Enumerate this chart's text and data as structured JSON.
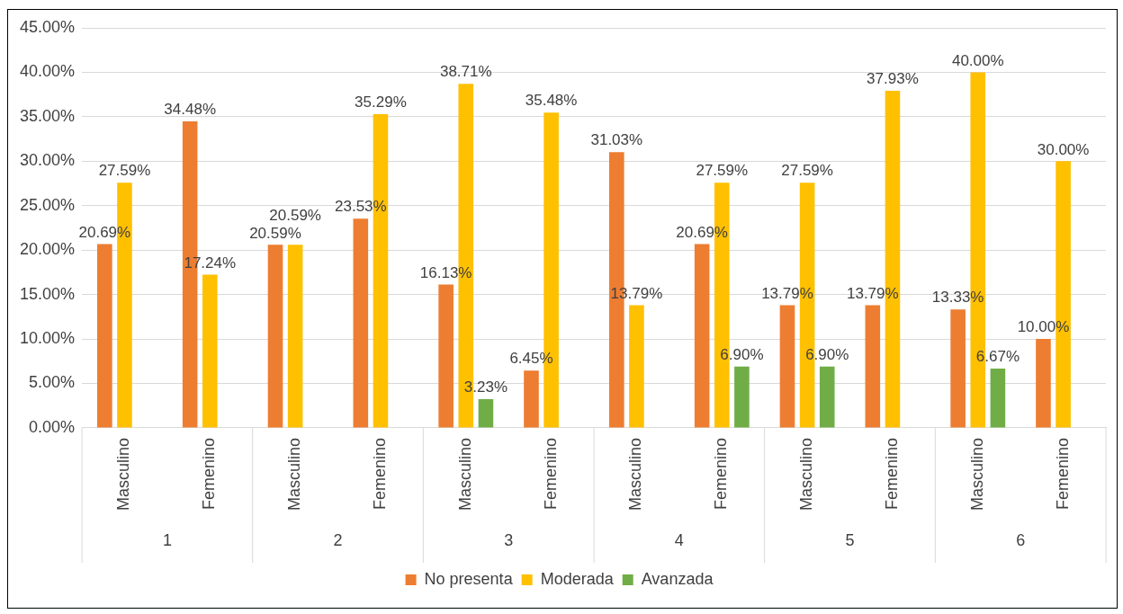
{
  "chart_data": {
    "type": "bar",
    "categories": [
      "Masculino",
      "Femenino",
      "Masculino",
      "Femenino",
      "Masculino",
      "Femenino",
      "Masculino",
      "Femenino",
      "Masculino",
      "Femenino",
      "Masculino",
      "Femenino"
    ],
    "annotations": [
      "1",
      "2",
      "3",
      "4",
      "5",
      "6"
    ],
    "series": [
      {
        "name": "No presenta",
        "color": "#ed7d31",
        "values": [
          20.69,
          34.48,
          20.59,
          23.53,
          16.13,
          6.45,
          31.03,
          20.69,
          13.79,
          13.79,
          13.33,
          10.0
        ],
        "value_labels": [
          "20.69%",
          "34.48%",
          "20.59%",
          "23.53%",
          "16.13%",
          "6.45%",
          "31.03%",
          "20.69%",
          "13.79%",
          "13.79%",
          "13.33%",
          "10.00%"
        ]
      },
      {
        "name": "Moderada",
        "color": "#ffc000",
        "values": [
          27.59,
          17.24,
          20.59,
          35.29,
          38.71,
          35.48,
          13.79,
          27.59,
          27.59,
          37.93,
          40.0,
          30.0
        ],
        "value_labels": [
          "27.59%",
          "17.24%",
          "20.59%",
          "35.29%",
          "38.71%",
          "35.48%",
          "13.79%",
          "27.59%",
          "27.59%",
          "37.93%",
          "40.00%",
          "30.00%"
        ]
      },
      {
        "name": "Avanzada",
        "color": "#70ad47",
        "values": [
          null,
          null,
          null,
          null,
          3.23,
          null,
          null,
          6.9,
          6.9,
          null,
          6.67,
          null
        ],
        "value_labels": [
          null,
          null,
          null,
          null,
          "3.23%",
          null,
          null,
          "6.90%",
          "6.90%",
          null,
          "6.67%",
          null
        ]
      }
    ],
    "ylim": [
      0,
      45
    ],
    "yticks": [
      {
        "value": 0,
        "label": "0.00%"
      },
      {
        "value": 5,
        "label": "5.00%"
      },
      {
        "value": 10,
        "label": "10.00%"
      },
      {
        "value": 15,
        "label": "15.00%"
      },
      {
        "value": 20,
        "label": "20.00%"
      },
      {
        "value": 25,
        "label": "25.00%"
      },
      {
        "value": 30,
        "label": "30.00%"
      },
      {
        "value": 35,
        "label": "35.00%"
      },
      {
        "value": 40,
        "label": "40.00%"
      },
      {
        "value": 45,
        "label": "45.00%"
      }
    ],
    "grid": "y",
    "legend": "bottom"
  }
}
